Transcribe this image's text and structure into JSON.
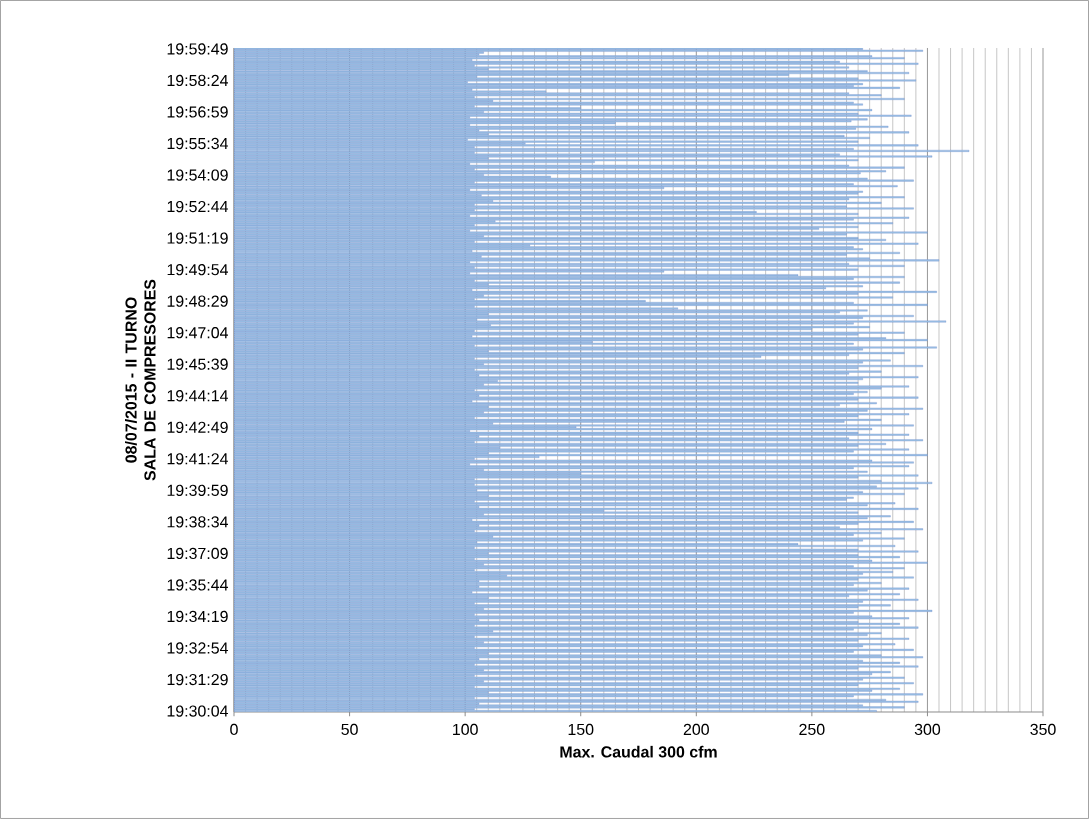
{
  "chart_data": {
    "type": "bar",
    "orientation": "horizontal",
    "ylabel": "08/07/2015 - II TURNO SALA DE COMPRESORES",
    "xlabel": "Max. Caudal 300 cfm",
    "categories": [
      "19:59:49",
      null,
      null,
      null,
      null,
      null,
      null,
      null,
      null,
      null,
      null,
      null,
      null,
      null,
      null,
      null,
      null,
      "19:58:24",
      null,
      null,
      null,
      null,
      null,
      null,
      null,
      null,
      null,
      null,
      null,
      null,
      null,
      null,
      null,
      null,
      "19:56:59",
      null,
      null,
      null,
      null,
      null,
      null,
      null,
      null,
      null,
      null,
      null,
      null,
      null,
      null,
      null,
      null,
      "19:55:34",
      null,
      null,
      null,
      null,
      null,
      null,
      null,
      null,
      null,
      null,
      null,
      null,
      null,
      null,
      null,
      null,
      "19:54:09",
      null,
      null,
      null,
      null,
      null,
      null,
      null,
      null,
      null,
      null,
      null,
      null,
      null,
      null,
      null,
      null,
      "19:52:44",
      null,
      null,
      null,
      null,
      null,
      null,
      null,
      null,
      null,
      null,
      null,
      null,
      null,
      null,
      null,
      null,
      "19:51:19",
      null,
      null,
      null,
      null,
      null,
      null,
      null,
      null,
      null,
      null,
      null,
      null,
      null,
      null,
      null,
      null,
      "19:49:54",
      null,
      null,
      null,
      null,
      null,
      null,
      null,
      null,
      null,
      null,
      null,
      null,
      null,
      null,
      null,
      null,
      "19:48:29",
      null,
      null,
      null,
      null,
      null,
      null,
      null,
      null,
      null,
      null,
      null,
      null,
      null,
      null,
      null,
      null,
      "19:47:04",
      null,
      null,
      null,
      null,
      null,
      null,
      null,
      null,
      null,
      null,
      null,
      null,
      null,
      null,
      null,
      null,
      "19:45:39",
      null,
      null,
      null,
      null,
      null,
      null,
      null,
      null,
      null,
      null,
      null,
      null,
      null,
      null,
      null,
      null,
      "19:44:14",
      null,
      null,
      null,
      null,
      null,
      null,
      null,
      null,
      null,
      null,
      null,
      null,
      null,
      null,
      null,
      null,
      "19:42:49",
      null,
      null,
      null,
      null,
      null,
      null,
      null,
      null,
      null,
      null,
      null,
      null,
      null,
      null,
      null,
      null,
      "19:41:24",
      null,
      null,
      null,
      null,
      null,
      null,
      null,
      null,
      null,
      null,
      null,
      null,
      null,
      null,
      null,
      null,
      "19:39:59",
      null,
      null,
      null,
      null,
      null,
      null,
      null,
      null,
      null,
      null,
      null,
      null,
      null,
      null,
      null,
      null,
      "19:38:34",
      null,
      null,
      null,
      null,
      null,
      null,
      null,
      null,
      null,
      null,
      null,
      null,
      null,
      null,
      null,
      null,
      "19:37:09",
      null,
      null,
      null,
      null,
      null,
      null,
      null,
      null,
      null,
      null,
      null,
      null,
      null,
      null,
      null,
      null,
      "19:35:44",
      null,
      null,
      null,
      null,
      null,
      null,
      null,
      null,
      null,
      null,
      null,
      null,
      null,
      null,
      null,
      null,
      "19:34:19",
      null,
      null,
      null,
      null,
      null,
      null,
      null,
      null,
      null,
      null,
      null,
      null,
      null,
      null,
      null,
      null,
      "19:32:54",
      null,
      null,
      null,
      null,
      null,
      null,
      null,
      null,
      null,
      null,
      null,
      null,
      null,
      null,
      null,
      null,
      "19:31:29",
      null,
      null,
      null,
      null,
      null,
      null,
      null,
      null,
      null,
      null,
      null,
      null,
      null,
      null,
      null,
      null,
      "19:30:04"
    ],
    "values": [
      272,
      298,
      108,
      106,
      276,
      290,
      103,
      262,
      296,
      104,
      266,
      110,
      274,
      292,
      240,
      105,
      270,
      295,
      101,
      272,
      268,
      288,
      103,
      135,
      266,
      280,
      104,
      290,
      112,
      268,
      272,
      104,
      150,
      276,
      108,
      270,
      293,
      102,
      274,
      267,
      165,
      102,
      283,
      269,
      106,
      292,
      110,
      264,
      275,
      101,
      270,
      126,
      296,
      104,
      268,
      318,
      104,
      262,
      302,
      110,
      270,
      156,
      102,
      266,
      290,
      104,
      282,
      271,
      108,
      137,
      274,
      294,
      104,
      268,
      287,
      186,
      102,
      272,
      270,
      107,
      290,
      266,
      112,
      280,
      104,
      265,
      294,
      104,
      226,
      270,
      102,
      292,
      268,
      113,
      285,
      104,
      270,
      253,
      102,
      300,
      265,
      108,
      270,
      282,
      104,
      296,
      128,
      268,
      272,
      103,
      288,
      265,
      107,
      275,
      305,
      102,
      266,
      290,
      104,
      270,
      186,
      102,
      244,
      290,
      268,
      104,
      288,
      110,
      272,
      256,
      103,
      304,
      270,
      108,
      285,
      104,
      178,
      268,
      300,
      104,
      192,
      274,
      262,
      110,
      294,
      272,
      105,
      308,
      268,
      111,
      275,
      250,
      104,
      290,
      270,
      103,
      282,
      300,
      155,
      268,
      104,
      304,
      272,
      110,
      290,
      266,
      228,
      104,
      284,
      272,
      108,
      298,
      270,
      104,
      280,
      266,
      106,
      296,
      272,
      114,
      270,
      108,
      292,
      280,
      104,
      274,
      268,
      106,
      296,
      270,
      103,
      278,
      262,
      110,
      298,
      274,
      108,
      292,
      270,
      104,
      280,
      264,
      112,
      294,
      148,
      276,
      102,
      270,
      292,
      106,
      266,
      298,
      104,
      282,
      270,
      115,
      292,
      268,
      110,
      300,
      132,
      104,
      276,
      294,
      102,
      292,
      268,
      108,
      274,
      150,
      296,
      270,
      104,
      280,
      302,
      104,
      278,
      296,
      105,
      272,
      290,
      110,
      268,
      265,
      104,
      286,
      274,
      106,
      296,
      160,
      270,
      108,
      284,
      274,
      103,
      294,
      270,
      106,
      262,
      298,
      104,
      280,
      268,
      112,
      290,
      272,
      105,
      244,
      286,
      104,
      270,
      296,
      110,
      270,
      288,
      104,
      276,
      300,
      108,
      268,
      290,
      104,
      285,
      272,
      118,
      294,
      270,
      106,
      280,
      268,
      106,
      292,
      274,
      103,
      288,
      266,
      110,
      296,
      272,
      104,
      284,
      270,
      108,
      302,
      268,
      104,
      276,
      292,
      106,
      270,
      288,
      104,
      296,
      268,
      112,
      280,
      274,
      104,
      292,
      270,
      108,
      286,
      272,
      104,
      294,
      268,
      110,
      280,
      298,
      106,
      272,
      288,
      104,
      296,
      270,
      108,
      284,
      276,
      104,
      290,
      272,
      108,
      294,
      270,
      104,
      288,
      276,
      110,
      298,
      268,
      104,
      282,
      296,
      106,
      272,
      290,
      104,
      278
    ],
    "color": "#9dc3e6",
    "xlim": [
      0,
      350
    ],
    "xticks": [
      0,
      50,
      100,
      150,
      200,
      250,
      300,
      350
    ],
    "grid": "x"
  }
}
